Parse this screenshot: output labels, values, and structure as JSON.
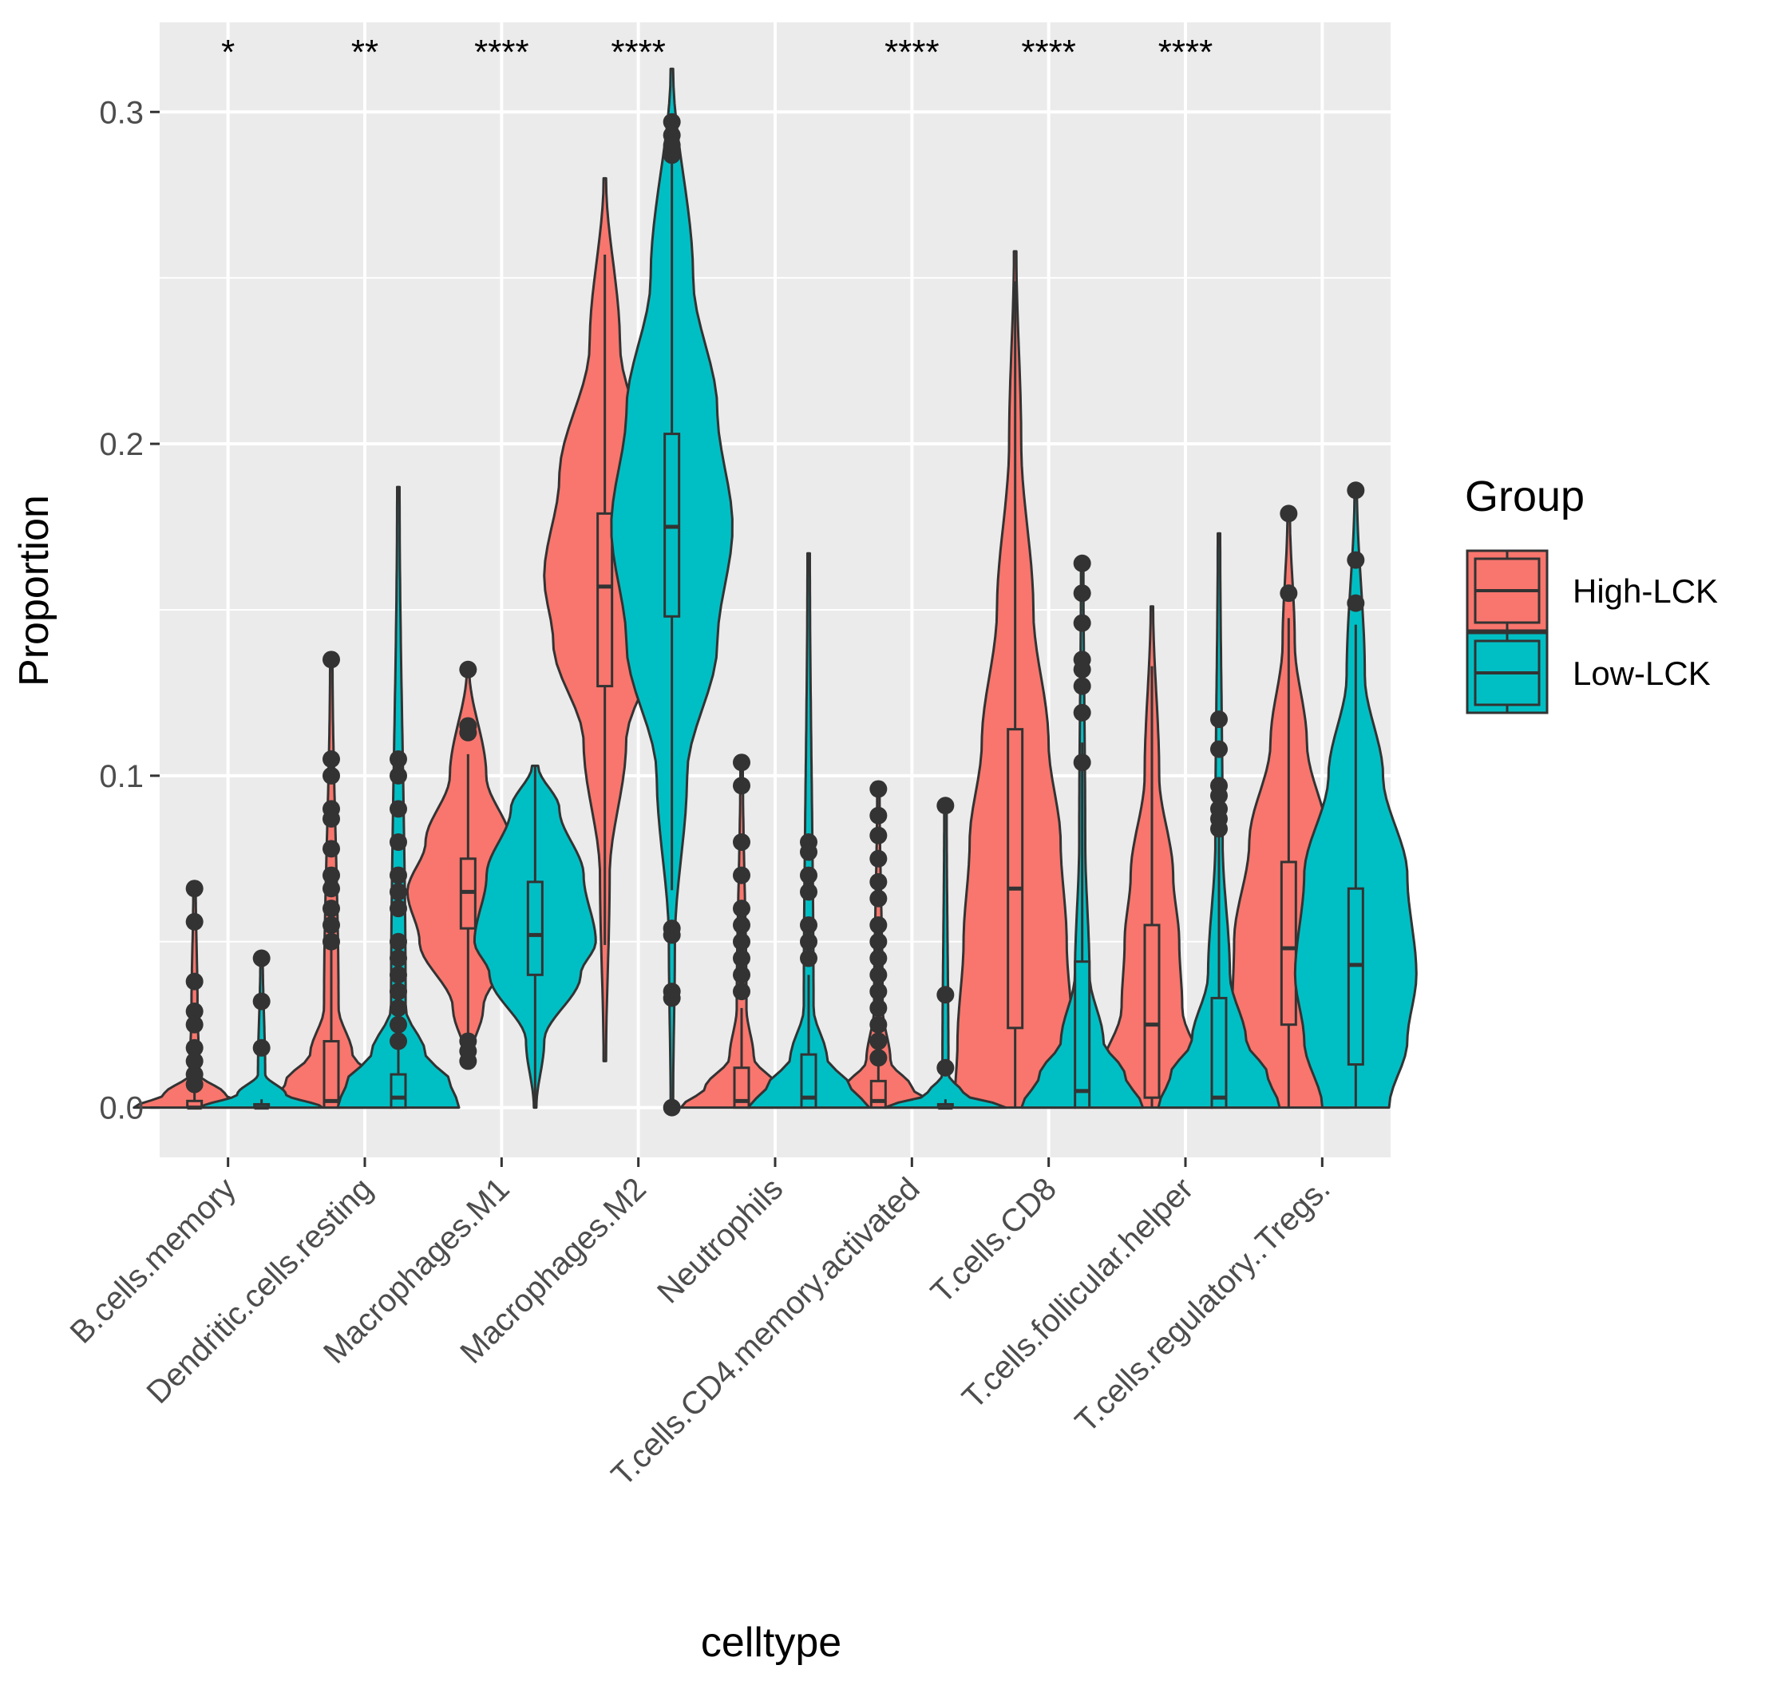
{
  "chart_data": {
    "type": "violin",
    "xlabel": "celltype",
    "ylabel": "Proportion",
    "ylim": [
      -0.015,
      0.327
    ],
    "yticks": [
      0.0,
      0.1,
      0.2,
      0.3
    ],
    "ytick_labels": [
      "0.0",
      "0.1",
      "0.2",
      "0.3"
    ],
    "grid": true,
    "legend": {
      "title": "Group",
      "position": "right",
      "entries": [
        {
          "label": "High-LCK",
          "color": "#F8766D"
        },
        {
          "label": "Low-LCK",
          "color": "#00BFC4"
        }
      ]
    },
    "categories": [
      "B.cells.memory",
      "Dendritic.cells.resting",
      "Macrophages.M1",
      "Macrophages.M2",
      "Neutrophils",
      "T.cells.CD4.memory.activated",
      "T.cells.CD8",
      "T.cells.follicular.helper",
      "T.cells.regulatory..Tregs."
    ],
    "significance": [
      "*",
      "**",
      "****",
      "****",
      "",
      "****",
      "****",
      "****",
      ""
    ],
    "series": [
      {
        "name": "High-LCK",
        "color": "#F8766D",
        "stats": [
          {
            "min": 0,
            "q1": 0,
            "median": 0,
            "q3": 0.002,
            "max": 0.066,
            "outliers": [
              0.066,
              0.056,
              0.038,
              0.029,
              0.025,
              0.018,
              0.014,
              0.01,
              0.007
            ],
            "density": [
              [
                0,
                1
              ],
              [
                0.004,
                0.5
              ],
              [
                0.01,
                0.08
              ],
              [
                0.03,
                0.05
              ],
              [
                0.066,
                0.02
              ]
            ]
          },
          {
            "min": 0,
            "q1": 0,
            "median": 0.002,
            "q3": 0.02,
            "max": 0.135,
            "outliers": [
              0.135,
              0.105,
              0.1,
              0.09,
              0.087,
              0.078,
              0.07,
              0.066,
              0.06,
              0.055,
              0.05
            ],
            "density": [
              [
                0,
                1
              ],
              [
                0.008,
                0.75
              ],
              [
                0.016,
                0.35
              ],
              [
                0.03,
                0.12
              ],
              [
                0.135,
                0.02
              ]
            ]
          },
          {
            "min": 0.014,
            "q1": 0.054,
            "median": 0.065,
            "q3": 0.075,
            "max": 0.132,
            "outliers": [
              0.132,
              0.115,
              0.113,
              0.02,
              0.017,
              0.014
            ],
            "density": [
              [
                0.014,
                0.02
              ],
              [
                0.03,
                0.25
              ],
              [
                0.05,
                0.8
              ],
              [
                0.065,
                1
              ],
              [
                0.08,
                0.7
              ],
              [
                0.1,
                0.3
              ],
              [
                0.132,
                0.02
              ]
            ]
          },
          {
            "min": 0.014,
            "q1": 0.127,
            "median": 0.157,
            "q3": 0.179,
            "max": 0.28,
            "outliers": [],
            "density": [
              [
                0.014,
                0.02
              ],
              [
                0.07,
                0.08
              ],
              [
                0.11,
                0.35
              ],
              [
                0.14,
                0.85
              ],
              [
                0.16,
                1
              ],
              [
                0.19,
                0.75
              ],
              [
                0.23,
                0.25
              ],
              [
                0.28,
                0.02
              ]
            ]
          },
          {
            "min": 0,
            "q1": 0,
            "median": 0.002,
            "q3": 0.012,
            "max": 0.104,
            "outliers": [
              0.104,
              0.097,
              0.08,
              0.07,
              0.06,
              0.055,
              0.05,
              0.045,
              0.04,
              0.035
            ],
            "density": [
              [
                0,
                1
              ],
              [
                0.006,
                0.6
              ],
              [
                0.015,
                0.2
              ],
              [
                0.03,
                0.08
              ],
              [
                0.104,
                0.02
              ]
            ]
          },
          {
            "min": 0,
            "q1": 0,
            "median": 0.002,
            "q3": 0.008,
            "max": 0.096,
            "outliers": [
              0.096,
              0.088,
              0.082,
              0.075,
              0.068,
              0.063,
              0.055,
              0.05,
              0.045,
              0.04,
              0.035,
              0.03,
              0.025,
              0.02,
              0.015
            ],
            "density": [
              [
                0,
                1
              ],
              [
                0.006,
                0.55
              ],
              [
                0.014,
                0.2
              ],
              [
                0.03,
                0.07
              ],
              [
                0.096,
                0.02
              ]
            ]
          },
          {
            "min": 0,
            "q1": 0.024,
            "median": 0.066,
            "q3": 0.114,
            "max": 0.258,
            "outliers": [],
            "density": [
              [
                0,
                1
              ],
              [
                0.02,
                0.95
              ],
              [
                0.05,
                0.85
              ],
              [
                0.08,
                0.75
              ],
              [
                0.11,
                0.55
              ],
              [
                0.15,
                0.3
              ],
              [
                0.2,
                0.1
              ],
              [
                0.258,
                0.02
              ]
            ]
          },
          {
            "min": 0,
            "q1": 0.003,
            "median": 0.025,
            "q3": 0.055,
            "max": 0.151,
            "outliers": [],
            "density": [
              [
                0,
                1
              ],
              [
                0.01,
                0.85
              ],
              [
                0.03,
                0.5
              ],
              [
                0.05,
                0.45
              ],
              [
                0.07,
                0.35
              ],
              [
                0.1,
                0.12
              ],
              [
                0.151,
                0.02
              ]
            ]
          },
          {
            "min": 0,
            "q1": 0.025,
            "median": 0.048,
            "q3": 0.074,
            "max": 0.179,
            "outliers": [
              0.179,
              0.155
            ],
            "density": [
              [
                0,
                1
              ],
              [
                0.02,
                0.95
              ],
              [
                0.05,
                0.9
              ],
              [
                0.08,
                0.65
              ],
              [
                0.11,
                0.3
              ],
              [
                0.14,
                0.1
              ],
              [
                0.179,
                0.02
              ]
            ]
          }
        ]
      },
      {
        "name": "Low-LCK",
        "color": "#00BFC4",
        "stats": [
          {
            "min": 0,
            "q1": 0,
            "median": 0,
            "q3": 0.001,
            "max": 0.045,
            "outliers": [
              0.045,
              0.032,
              0.018
            ],
            "density": [
              [
                0,
                1
              ],
              [
                0.004,
                0.4
              ],
              [
                0.01,
                0.06
              ],
              [
                0.045,
                0.02
              ]
            ]
          },
          {
            "min": 0,
            "q1": 0,
            "median": 0.003,
            "q3": 0.01,
            "max": 0.187,
            "outliers": [
              0.105,
              0.1,
              0.09,
              0.08,
              0.07,
              0.065,
              0.06,
              0.05,
              0.045,
              0.04,
              0.035,
              0.03,
              0.025,
              0.02
            ],
            "density": [
              [
                0,
                1
              ],
              [
                0.008,
                0.85
              ],
              [
                0.016,
                0.45
              ],
              [
                0.03,
                0.12
              ],
              [
                0.187,
                0.02
              ]
            ]
          },
          {
            "min": 0,
            "q1": 0.04,
            "median": 0.052,
            "q3": 0.068,
            "max": 0.103,
            "outliers": [],
            "density": [
              [
                0,
                0.02
              ],
              [
                0.02,
                0.15
              ],
              [
                0.04,
                0.75
              ],
              [
                0.05,
                1
              ],
              [
                0.07,
                0.8
              ],
              [
                0.09,
                0.4
              ],
              [
                0.103,
                0.05
              ]
            ]
          },
          {
            "min": 0,
            "q1": 0.148,
            "median": 0.175,
            "q3": 0.203,
            "max": 0.313,
            "outliers": [
              0.297,
              0.293,
              0.29,
              0.287,
              0.054,
              0.052,
              0.035,
              0.033,
              0.0
            ],
            "density": [
              [
                0,
                0.02
              ],
              [
                0.05,
                0.05
              ],
              [
                0.1,
                0.25
              ],
              [
                0.14,
                0.75
              ],
              [
                0.175,
                1
              ],
              [
                0.21,
                0.75
              ],
              [
                0.25,
                0.35
              ],
              [
                0.313,
                0.02
              ]
            ]
          },
          {
            "min": 0,
            "q1": 0,
            "median": 0.003,
            "q3": 0.016,
            "max": 0.167,
            "outliers": [
              0.08,
              0.077,
              0.07,
              0.065,
              0.055,
              0.05,
              0.045
            ],
            "density": [
              [
                0,
                1
              ],
              [
                0.006,
                0.7
              ],
              [
                0.015,
                0.3
              ],
              [
                0.03,
                0.08
              ],
              [
                0.167,
                0.02
              ]
            ]
          },
          {
            "min": 0,
            "q1": 0,
            "median": 0,
            "q3": 0.001,
            "max": 0.091,
            "outliers": [
              0.091,
              0.034,
              0.012
            ],
            "density": [
              [
                0,
                1
              ],
              [
                0.004,
                0.3
              ],
              [
                0.01,
                0.05
              ],
              [
                0.091,
                0.02
              ]
            ]
          },
          {
            "min": 0,
            "q1": 0,
            "median": 0.005,
            "q3": 0.044,
            "max": 0.164,
            "outliers": [
              0.164,
              0.155,
              0.146,
              0.135,
              0.132,
              0.127,
              0.119,
              0.104
            ],
            "density": [
              [
                0,
                1
              ],
              [
                0.01,
                0.7
              ],
              [
                0.02,
                0.35
              ],
              [
                0.04,
                0.12
              ],
              [
                0.08,
                0.05
              ],
              [
                0.164,
                0.02
              ]
            ]
          },
          {
            "min": 0,
            "q1": 0,
            "median": 0.003,
            "q3": 0.033,
            "max": 0.173,
            "outliers": [
              0.117,
              0.108,
              0.097,
              0.094,
              0.09,
              0.087,
              0.084
            ],
            "density": [
              [
                0,
                1
              ],
              [
                0.01,
                0.8
              ],
              [
                0.02,
                0.45
              ],
              [
                0.04,
                0.18
              ],
              [
                0.08,
                0.06
              ],
              [
                0.173,
                0.02
              ]
            ]
          },
          {
            "min": 0,
            "q1": 0.013,
            "median": 0.043,
            "q3": 0.066,
            "max": 0.186,
            "outliers": [
              0.186,
              0.165,
              0.152
            ],
            "density": [
              [
                0,
                0.55
              ],
              [
                0.02,
                0.85
              ],
              [
                0.04,
                1
              ],
              [
                0.07,
                0.85
              ],
              [
                0.1,
                0.45
              ],
              [
                0.13,
                0.15
              ],
              [
                0.186,
                0.02
              ]
            ]
          }
        ]
      }
    ]
  }
}
